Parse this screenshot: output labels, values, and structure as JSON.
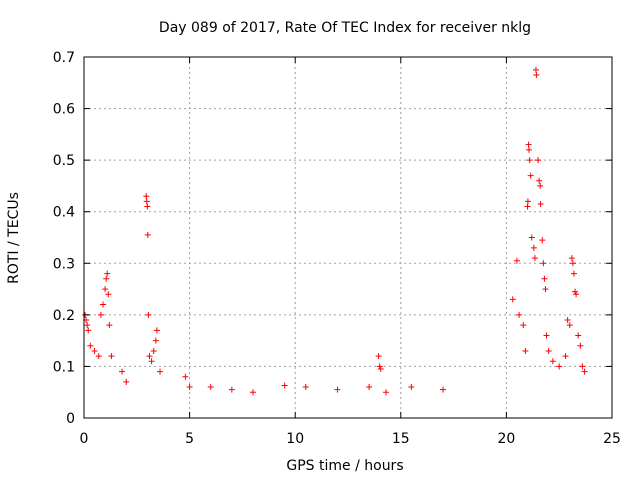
{
  "chart_data": {
    "type": "scatter",
    "title": "Day 089 of 2017, Rate Of TEC Index for receiver nklg",
    "xlabel": "GPS time / hours",
    "ylabel": "ROTI / TECUs",
    "xlim": [
      0,
      25
    ],
    "ylim": [
      0,
      0.7
    ],
    "xticks": [
      "0",
      "5",
      "10",
      "15",
      "20",
      "25"
    ],
    "yticks": [
      "0",
      "0.1",
      "0.2",
      "0.3",
      "0.4",
      "0.5",
      "0.6",
      "0.7"
    ],
    "grid": true,
    "marker": "+",
    "color": "#ff0000",
    "series": [
      {
        "points": [
          [
            0.05,
            0.2
          ],
          [
            0.1,
            0.19
          ],
          [
            0.15,
            0.18
          ],
          [
            0.2,
            0.17
          ],
          [
            0.3,
            0.14
          ],
          [
            0.5,
            0.13
          ],
          [
            0.7,
            0.12
          ],
          [
            0.8,
            0.2
          ],
          [
            0.9,
            0.22
          ],
          [
            1.0,
            0.25
          ],
          [
            1.05,
            0.27
          ],
          [
            1.1,
            0.28
          ],
          [
            1.15,
            0.24
          ],
          [
            1.2,
            0.18
          ],
          [
            1.3,
            0.12
          ],
          [
            1.8,
            0.09
          ],
          [
            2.0,
            0.07
          ],
          [
            2.95,
            0.43
          ],
          [
            2.97,
            0.42
          ],
          [
            3.0,
            0.41
          ],
          [
            3.02,
            0.355
          ],
          [
            3.05,
            0.2
          ],
          [
            3.1,
            0.12
          ],
          [
            3.2,
            0.11
          ],
          [
            3.3,
            0.13
          ],
          [
            3.4,
            0.15
          ],
          [
            3.45,
            0.17
          ],
          [
            3.6,
            0.09
          ],
          [
            4.8,
            0.08
          ],
          [
            5.0,
            0.06
          ],
          [
            6.0,
            0.06
          ],
          [
            7.0,
            0.055
          ],
          [
            8.0,
            0.05
          ],
          [
            9.5,
            0.063
          ],
          [
            10.5,
            0.06
          ],
          [
            12.0,
            0.055
          ],
          [
            13.5,
            0.06
          ],
          [
            13.95,
            0.12
          ],
          [
            14.0,
            0.1
          ],
          [
            14.05,
            0.095
          ],
          [
            14.3,
            0.05
          ],
          [
            15.5,
            0.06
          ],
          [
            17.0,
            0.055
          ],
          [
            20.3,
            0.23
          ],
          [
            20.5,
            0.305
          ],
          [
            20.6,
            0.2
          ],
          [
            20.8,
            0.18
          ],
          [
            20.9,
            0.13
          ],
          [
            21.0,
            0.41
          ],
          [
            21.02,
            0.42
          ],
          [
            21.05,
            0.53
          ],
          [
            21.07,
            0.52
          ],
          [
            21.1,
            0.5
          ],
          [
            21.15,
            0.47
          ],
          [
            21.2,
            0.35
          ],
          [
            21.3,
            0.33
          ],
          [
            21.35,
            0.31
          ],
          [
            21.4,
            0.675
          ],
          [
            21.42,
            0.665
          ],
          [
            21.5,
            0.5
          ],
          [
            21.55,
            0.46
          ],
          [
            21.6,
            0.45
          ],
          [
            21.62,
            0.415
          ],
          [
            21.7,
            0.345
          ],
          [
            21.75,
            0.3
          ],
          [
            21.8,
            0.27
          ],
          [
            21.85,
            0.25
          ],
          [
            21.9,
            0.16
          ],
          [
            22.0,
            0.13
          ],
          [
            22.2,
            0.11
          ],
          [
            22.5,
            0.1
          ],
          [
            22.8,
            0.12
          ],
          [
            22.9,
            0.19
          ],
          [
            23.0,
            0.18
          ],
          [
            23.1,
            0.31
          ],
          [
            23.15,
            0.3
          ],
          [
            23.2,
            0.28
          ],
          [
            23.25,
            0.245
          ],
          [
            23.3,
            0.24
          ],
          [
            23.4,
            0.16
          ],
          [
            23.5,
            0.14
          ],
          [
            23.6,
            0.1
          ],
          [
            23.7,
            0.09
          ]
        ]
      }
    ]
  }
}
